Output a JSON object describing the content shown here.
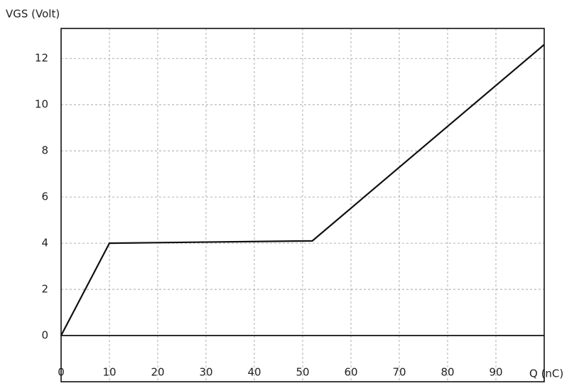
{
  "chart_data": {
    "type": "line",
    "y_label": "VGS (Volt)",
    "x_label": "Q (nC)",
    "x": [
      0,
      10,
      52,
      100
    ],
    "series": [
      {
        "color": "#111111",
        "values": [
          0,
          4,
          4.1,
          12.6
        ]
      }
    ],
    "xlim": [
      0,
      100
    ],
    "ylim": [
      -2,
      13.3
    ],
    "xticks": [
      0,
      10,
      20,
      30,
      40,
      50,
      60,
      70,
      80,
      90
    ],
    "yticks": [
      0,
      2,
      4,
      6,
      8,
      10,
      12
    ],
    "grid": true
  }
}
